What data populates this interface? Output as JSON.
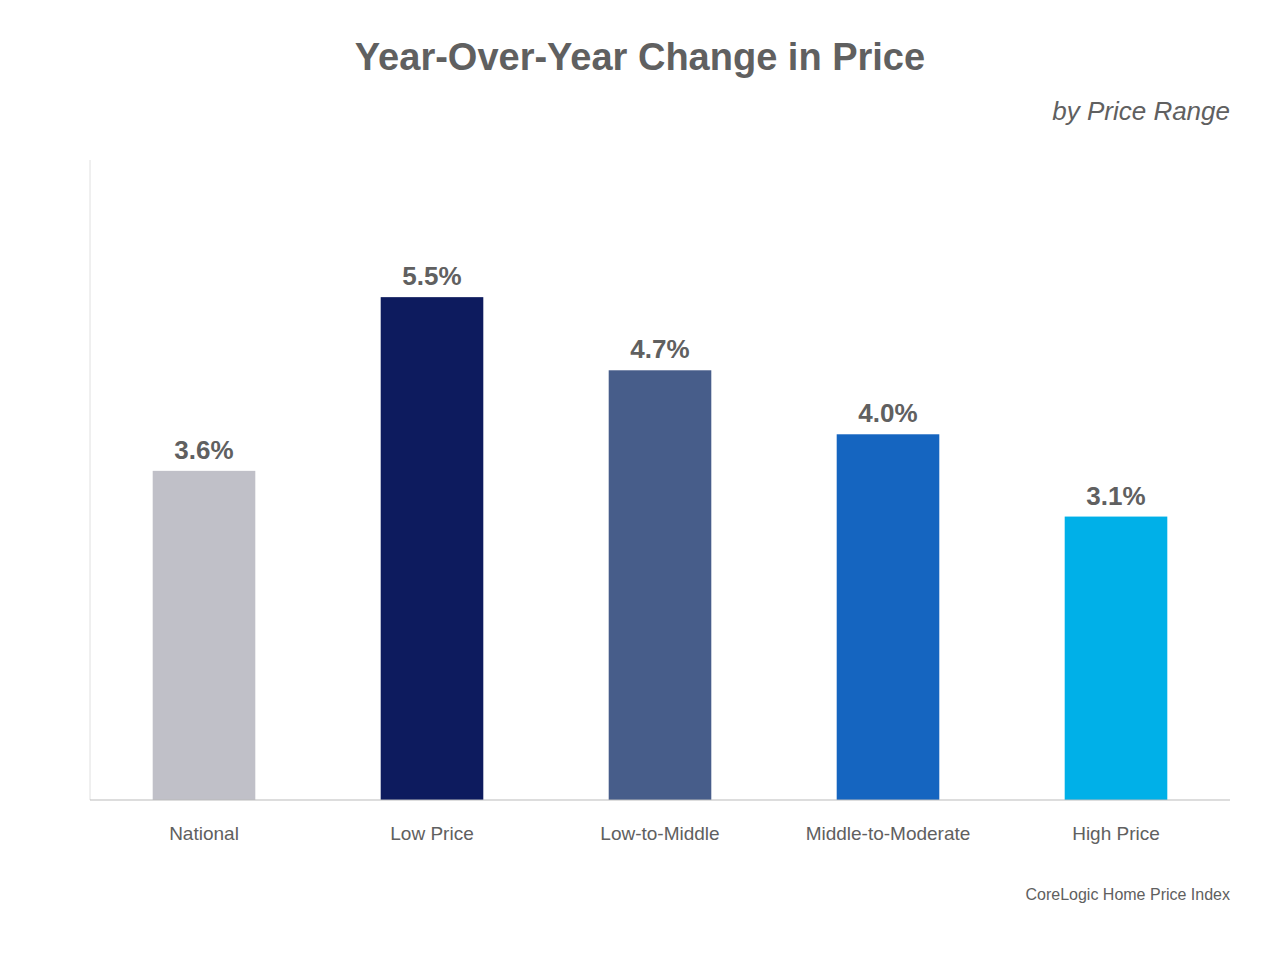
{
  "chart_data": {
    "type": "bar",
    "title": "Year-Over-Year Change in Price",
    "subtitle": "by Price Range",
    "annotations": [
      "CoreLogic Home Price Index"
    ],
    "categories": [
      "National",
      "Low Price",
      "Low-to-Middle",
      "Middle-to-Moderate",
      "High Price"
    ],
    "values": [
      3.6,
      5.5,
      4.7,
      4.0,
      3.1
    ],
    "value_labels": [
      "3.6%",
      "5.5%",
      "4.7%",
      "4.0%",
      "3.1%"
    ],
    "colors": [
      "#c0c0c8",
      "#0d1b5e",
      "#475d8a",
      "#1565c0",
      "#00b0e8"
    ],
    "ylim": [
      0,
      7.0
    ],
    "grid": false,
    "data_labels": true,
    "tick_labels": "x"
  }
}
